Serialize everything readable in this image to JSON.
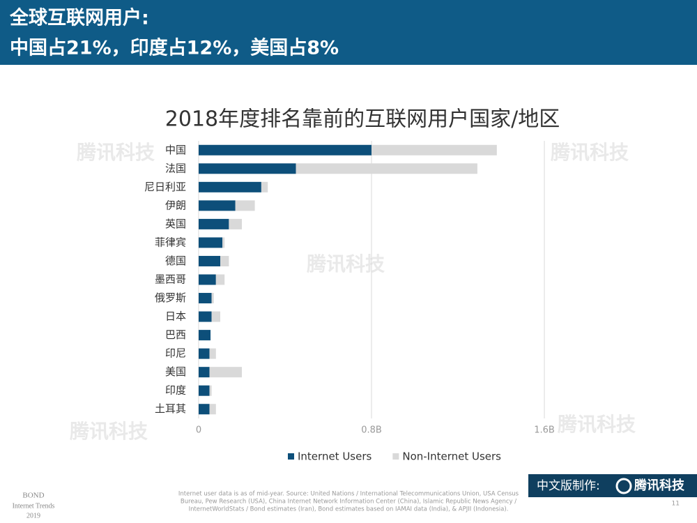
{
  "header": {
    "title_line1": "全球互联网用户:",
    "title_line2": "中国占21%，印度占12%，美国占8%"
  },
  "chart_data": {
    "type": "stacked_barh",
    "title": "2018年度排名靠前的互联网用户国家/地区",
    "categories": [
      "中国",
      "法国",
      "尼日利亚",
      "伊朗",
      "英国",
      "菲律宾",
      "德国",
      "墨西哥",
      "俄罗斯",
      "日本",
      "巴西",
      "印尼",
      "美国",
      "印度",
      "土耳其"
    ],
    "series": [
      {
        "name": "Internet Users",
        "color": "#0d4f7a",
        "values": [
          0.8,
          0.45,
          0.29,
          0.17,
          0.14,
          0.11,
          0.1,
          0.08,
          0.06,
          0.06,
          0.055,
          0.05,
          0.05,
          0.05,
          0.05
        ]
      },
      {
        "name": "Non-Internet Users",
        "color": "#d9d9d9",
        "values": [
          0.58,
          0.84,
          0.03,
          0.09,
          0.06,
          0.01,
          0.04,
          0.04,
          0.01,
          0.04,
          0,
          0.03,
          0.15,
          0.01,
          0.03
        ]
      }
    ],
    "xlim": [
      0,
      1.6
    ],
    "xticks": [
      0,
      {
        "value": 0.8,
        "label": "0.8B"
      },
      {
        "value": 1.6,
        "label": "1.6B"
      }
    ],
    "grid": true,
    "legend": "bottom"
  },
  "watermark": "腾讯科技",
  "footer": {
    "bond_line1": "BOND",
    "bond_line2": "Internet Trends",
    "bond_line3": "2019",
    "source_line1": "Internet user data is as of mid-year.  Source: United Nations / International Telecommunications Union, USA Census",
    "source_line2": "Bureau, Pew Research (USA), China Internet Network Information Center (China), Islamic Republic News Agency /",
    "source_line3": "InternetWorldStats / Bond estimates (Iran), Bond estimates based on IAMAI data (India), & APJII (Indonesia).",
    "badge_label": "中文版制作:",
    "badge_brand": "腾讯科技",
    "page_number": "11"
  }
}
